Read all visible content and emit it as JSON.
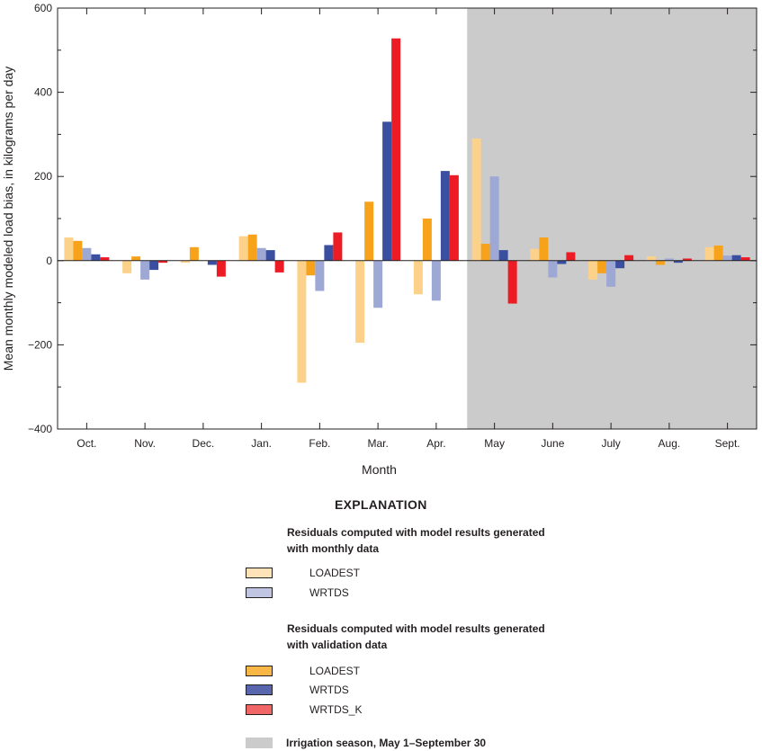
{
  "chart_data": {
    "type": "bar",
    "title": "",
    "xlabel": "Month",
    "ylabel": "Mean monthly modeled load bias, in kilograms per day",
    "ylim": [
      -400,
      600
    ],
    "yticks": [
      -400,
      -200,
      0,
      200,
      400,
      600
    ],
    "ytick_labels": [
      "−400",
      "−200",
      "0",
      "200",
      "400",
      "600"
    ],
    "grid": false,
    "categories": [
      "Oct.",
      "Nov.",
      "Dec.",
      "Jan.",
      "Feb.",
      "Mar.",
      "Apr.",
      "May",
      "June",
      "July",
      "Aug.",
      "Sept."
    ],
    "series": [
      {
        "name": "LOADEST (monthly data)",
        "color": "#fcd28a",
        "values": [
          55,
          -30,
          -5,
          58,
          -290,
          -195,
          -80,
          290,
          28,
          -45,
          10,
          32
        ]
      },
      {
        "name": "LOADEST (validation data)",
        "color": "#f7a21b",
        "values": [
          47,
          10,
          32,
          62,
          -35,
          140,
          100,
          40,
          55,
          -30,
          -10,
          36
        ]
      },
      {
        "name": "WRTDS (monthly data)",
        "color": "#9da8d4",
        "values": [
          30,
          -45,
          0,
          30,
          -72,
          -112,
          -95,
          200,
          -40,
          -62,
          5,
          12
        ]
      },
      {
        "name": "WRTDS (validation data)",
        "color": "#3a4f9f",
        "values": [
          15,
          -22,
          -10,
          25,
          37,
          330,
          213,
          25,
          -8,
          -18,
          -5,
          13
        ]
      },
      {
        "name": "WRTDS_K (validation data)",
        "color": "#ed1c24",
        "values": [
          8,
          -5,
          -38,
          -28,
          67,
          528,
          203,
          -102,
          20,
          13,
          5,
          8
        ]
      }
    ],
    "shaded_region": {
      "label": "Irrigation season, May 1–September 30",
      "start_category": "May",
      "end_category": "Sept.",
      "color": "#cbcbcb"
    }
  },
  "legend": {
    "heading": "EXPLANATION",
    "group_monthly": "Residuals computed with model results generated with monthly data",
    "group_validation": "Residuals computed with model results generated with validation data",
    "items": {
      "monthly_loadest": {
        "label": "LOADEST",
        "color": "#fde3b7"
      },
      "monthly_wrtds": {
        "label": "WRTDS",
        "color": "#c0c6e2"
      },
      "validation_loadest": {
        "label": "LOADEST",
        "color": "#f9b748"
      },
      "validation_wrtds": {
        "label": "WRTDS",
        "color": "#5867ad"
      },
      "validation_wrtdsk": {
        "label": "WRTDS_K",
        "color": "#f06566"
      },
      "irrigation": {
        "label": "Irrigation season, May 1–September 30",
        "color": "#cbcbcb"
      }
    }
  }
}
